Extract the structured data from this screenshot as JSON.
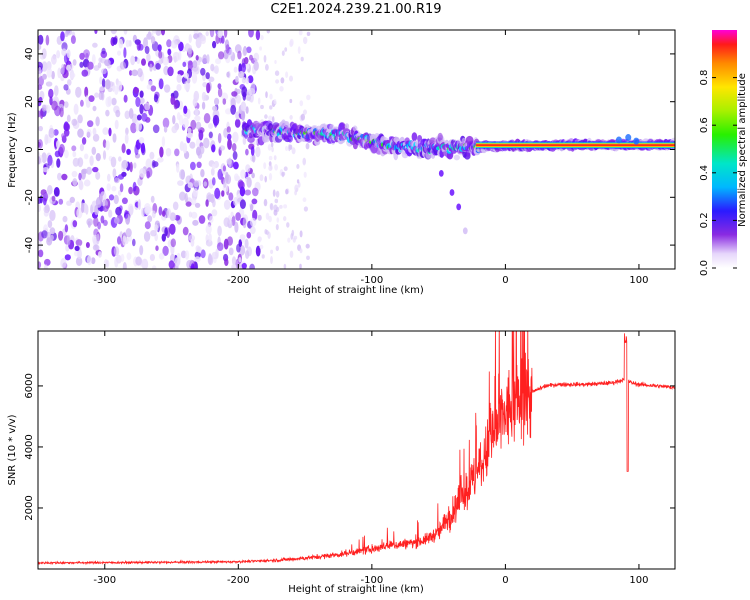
{
  "title": "C2E1.2024.239.21.00.R19",
  "colors": {
    "snr_line": "#ff2020",
    "spectrogram_low": "#c8a8f0",
    "spectrogram_mid": "#6a1cff",
    "spectrogram_high": "#00e8ff",
    "spectrogram_peak": "#ff2a1a"
  },
  "chart_data": [
    {
      "type": "heatmap",
      "xlabel": "Height of straight line (km)",
      "ylabel": "Frequency (Hz)",
      "xlim": [
        -350,
        127
      ],
      "ylim": [
        -50,
        50
      ],
      "x_ticks": [
        -300,
        -200,
        -100,
        0,
        100
      ],
      "y_ticks": [
        -40,
        -20,
        0,
        20,
        40
      ],
      "colorbar": {
        "label": "Normalized spectral amplitude",
        "range": [
          0,
          1
        ],
        "ticks": [
          "0.0",
          "0.2",
          "0.4",
          "0.6",
          "0.8"
        ]
      },
      "ridge": {
        "x": [
          -190,
          -150,
          -120,
          -100,
          -80,
          -60,
          -40,
          -20,
          0,
          40,
          80,
          127
        ],
        "freq": [
          8,
          7,
          6,
          3,
          1,
          1,
          1,
          1,
          1.5,
          1.8,
          2,
          2
        ]
      },
      "tail": {
        "x": [
          -48,
          -40,
          -35,
          -30
        ],
        "freq": [
          -10,
          -18,
          -24,
          -34
        ]
      }
    },
    {
      "type": "line",
      "xlabel": "Height of straight line (km)",
      "ylabel": "SNR (10 * v/v)",
      "xlim": [
        -350,
        127
      ],
      "ylim": [
        0,
        7800
      ],
      "x_ticks": [
        -300,
        -200,
        -100,
        0,
        100
      ],
      "y_ticks": [
        2000,
        4000,
        6000
      ],
      "series": [
        {
          "x": [
            -350,
            -300,
            -250,
            -200,
            -180,
            -160,
            -140,
            -120,
            -100,
            -90,
            -80,
            -70,
            -60,
            -50,
            -40,
            -30,
            -20,
            -15,
            -10,
            -5,
            0,
            10,
            20,
            30,
            40,
            60,
            80,
            88,
            92,
            95,
            100,
            127
          ],
          "values": [
            200,
            210,
            220,
            240,
            270,
            320,
            400,
            500,
            650,
            750,
            800,
            850,
            950,
            1200,
            1800,
            2500,
            3200,
            3700,
            4300,
            4700,
            5100,
            5500,
            5800,
            6000,
            6050,
            6050,
            6100,
            6200,
            6150,
            6100,
            6050,
            5950
          ]
        }
      ]
    }
  ]
}
